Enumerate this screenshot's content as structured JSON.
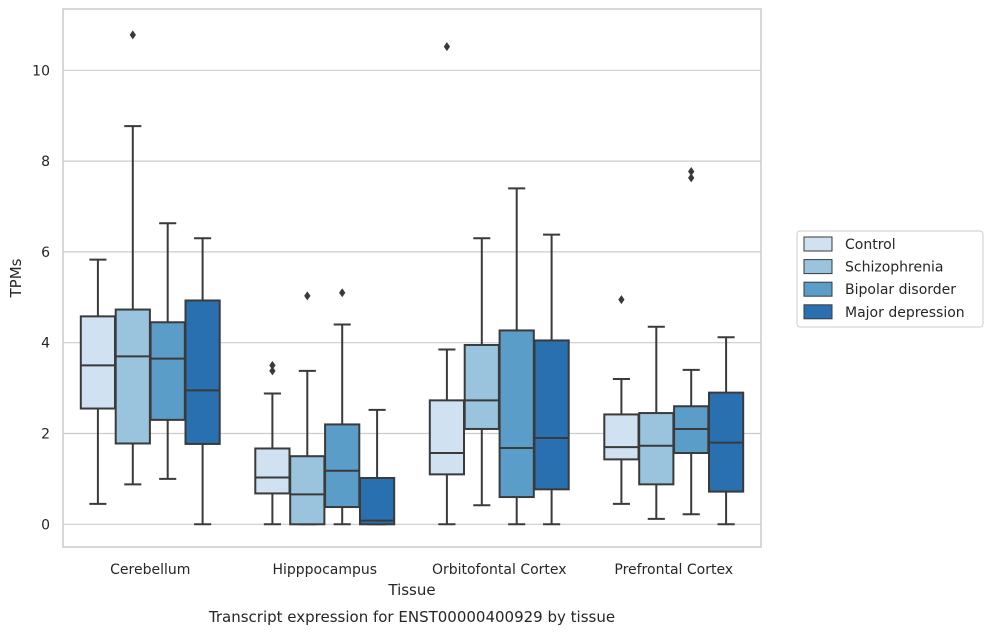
{
  "chart_data": {
    "type": "box",
    "title": "Transcript expression for ENST00000400929 by tissue",
    "xlabel": "Tissue",
    "ylabel": "TPMs",
    "ylim": [
      -0.5,
      11.35
    ],
    "yticks": [
      0,
      2,
      4,
      6,
      8,
      10
    ],
    "grid": "horizontal",
    "legend_position": "right",
    "categories": [
      "Cerebellum",
      "Hipppocampus",
      "Orbitofontal Cortex",
      "Prefrontal Cortex"
    ],
    "series": [
      {
        "name": "Control",
        "color": "#d0e1f2",
        "boxes": [
          {
            "whislo": 0.45,
            "q1": 2.55,
            "med": 3.5,
            "q3": 4.58,
            "whishi": 5.83,
            "fliers": []
          },
          {
            "whislo": 0.0,
            "q1": 0.68,
            "med": 1.03,
            "q3": 1.67,
            "whishi": 2.88,
            "fliers": [
              3.38,
              3.5
            ]
          },
          {
            "whislo": 0.0,
            "q1": 1.1,
            "med": 1.57,
            "q3": 2.73,
            "whishi": 3.85,
            "fliers": [
              10.52
            ]
          },
          {
            "whislo": 0.45,
            "q1": 1.43,
            "med": 1.7,
            "q3": 2.42,
            "whishi": 3.2,
            "fliers": [
              4.95
            ]
          }
        ]
      },
      {
        "name": "Schizophrenia",
        "color": "#9ac3dd",
        "boxes": [
          {
            "whislo": 0.88,
            "q1": 1.78,
            "med": 3.7,
            "q3": 4.73,
            "whishi": 8.77,
            "fliers": [
              10.78
            ]
          },
          {
            "whislo": 0.0,
            "q1": 0.0,
            "med": 0.66,
            "q3": 1.5,
            "whishi": 3.38,
            "fliers": [
              5.03
            ]
          },
          {
            "whislo": 0.42,
            "q1": 2.1,
            "med": 2.73,
            "q3": 3.95,
            "whishi": 6.3,
            "fliers": []
          },
          {
            "whislo": 0.12,
            "q1": 0.88,
            "med": 1.73,
            "q3": 2.45,
            "whishi": 4.35,
            "fliers": []
          }
        ]
      },
      {
        "name": "Bipolar disorder",
        "color": "#5b9dc9",
        "boxes": [
          {
            "whislo": 1.0,
            "q1": 2.3,
            "med": 3.65,
            "q3": 4.45,
            "whishi": 6.63,
            "fliers": []
          },
          {
            "whislo": 0.0,
            "q1": 0.38,
            "med": 1.18,
            "q3": 2.2,
            "whishi": 4.4,
            "fliers": [
              5.1
            ]
          },
          {
            "whislo": 0.0,
            "q1": 0.6,
            "med": 1.68,
            "q3": 4.27,
            "whishi": 7.4,
            "fliers": []
          },
          {
            "whislo": 0.22,
            "q1": 1.57,
            "med": 2.1,
            "q3": 2.6,
            "whishi": 3.4,
            "fliers": [
              7.63,
              7.77
            ]
          }
        ]
      },
      {
        "name": "Major depression",
        "color": "#2870b0",
        "boxes": [
          {
            "whislo": 0.0,
            "q1": 1.77,
            "med": 2.95,
            "q3": 4.93,
            "whishi": 6.3,
            "fliers": []
          },
          {
            "whislo": 0.0,
            "q1": 0.0,
            "med": 0.08,
            "q3": 1.02,
            "whishi": 2.52,
            "fliers": []
          },
          {
            "whislo": 0.0,
            "q1": 0.77,
            "med": 1.9,
            "q3": 4.05,
            "whishi": 6.38,
            "fliers": []
          },
          {
            "whislo": 0.0,
            "q1": 0.72,
            "med": 1.8,
            "q3": 2.9,
            "whishi": 4.12,
            "fliers": []
          }
        ]
      }
    ]
  }
}
